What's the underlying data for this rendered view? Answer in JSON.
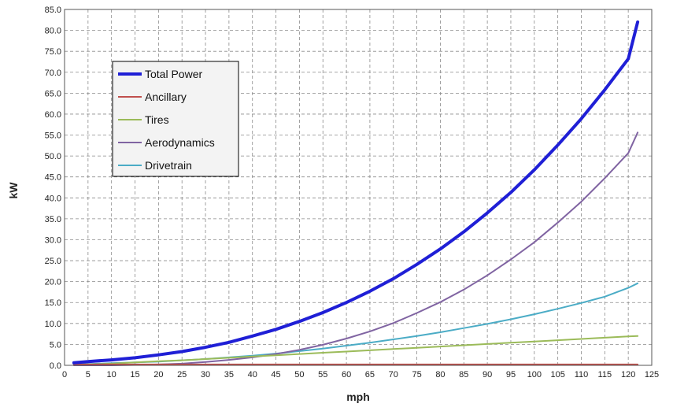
{
  "chart_data": {
    "type": "line",
    "xlabel": "mph",
    "ylabel": "kW",
    "xlim": [
      0,
      125
    ],
    "ylim": [
      0,
      85
    ],
    "xticks": [
      0,
      5,
      10,
      15,
      20,
      25,
      30,
      35,
      40,
      45,
      50,
      55,
      60,
      65,
      70,
      75,
      80,
      85,
      90,
      95,
      100,
      105,
      110,
      115,
      120,
      125
    ],
    "yticks": [
      "0.0",
      "5.0",
      "10.0",
      "15.0",
      "20.0",
      "25.0",
      "30.0",
      "35.0",
      "40.0",
      "45.0",
      "50.0",
      "55.0",
      "60.0",
      "65.0",
      "70.0",
      "75.0",
      "80.0",
      "85.0"
    ],
    "grid": true,
    "legend_position": "upper-left",
    "x": [
      2,
      5,
      10,
      15,
      20,
      25,
      30,
      35,
      40,
      45,
      50,
      55,
      60,
      65,
      70,
      75,
      80,
      85,
      90,
      95,
      100,
      105,
      110,
      115,
      120,
      122
    ],
    "series": [
      {
        "name": "Total Power",
        "color": "#1f1fd6",
        "width": 4,
        "values": [
          0.6,
          0.9,
          1.3,
          1.8,
          2.5,
          3.3,
          4.3,
          5.5,
          7.0,
          8.6,
          10.5,
          12.6,
          15.0,
          17.7,
          20.7,
          24.1,
          27.8,
          31.9,
          36.4,
          41.3,
          46.7,
          52.6,
          58.9,
          65.8,
          73.2,
          82.0
        ]
      },
      {
        "name": "Ancillary",
        "color": "#c0504d",
        "width": 2,
        "values": [
          0.2,
          0.2,
          0.2,
          0.2,
          0.2,
          0.2,
          0.2,
          0.2,
          0.2,
          0.2,
          0.2,
          0.2,
          0.2,
          0.2,
          0.2,
          0.2,
          0.2,
          0.2,
          0.2,
          0.2,
          0.2,
          0.2,
          0.2,
          0.2,
          0.2,
          0.2
        ]
      },
      {
        "name": "Tires",
        "color": "#9bbb59",
        "width": 2,
        "values": [
          0.1,
          0.2,
          0.4,
          0.7,
          1.0,
          1.2,
          1.5,
          1.8,
          2.1,
          2.4,
          2.7,
          3.0,
          3.3,
          3.6,
          3.9,
          4.2,
          4.5,
          4.8,
          5.1,
          5.4,
          5.7,
          6.0,
          6.3,
          6.6,
          6.9,
          7.0
        ]
      },
      {
        "name": "Aerodynamics",
        "color": "#8064a2",
        "width": 2,
        "values": [
          0.0,
          0.0,
          0.0,
          0.1,
          0.2,
          0.4,
          0.8,
          1.3,
          1.9,
          2.7,
          3.7,
          4.9,
          6.4,
          8.1,
          10.1,
          12.5,
          15.1,
          18.1,
          21.5,
          25.3,
          29.4,
          34.1,
          39.1,
          44.7,
          50.7,
          55.6
        ]
      },
      {
        "name": "Drivetrain",
        "color": "#4bacc6",
        "width": 2,
        "values": [
          0.2,
          0.3,
          0.5,
          0.7,
          0.9,
          1.2,
          1.5,
          1.9,
          2.3,
          2.8,
          3.4,
          4.0,
          4.7,
          5.4,
          6.2,
          7.0,
          7.9,
          8.9,
          9.9,
          11.0,
          12.2,
          13.5,
          14.9,
          16.4,
          18.5,
          19.6
        ]
      }
    ]
  }
}
